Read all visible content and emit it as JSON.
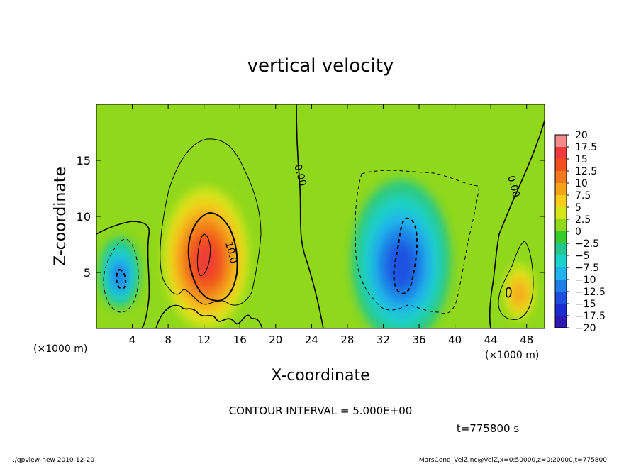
{
  "chart_data": {
    "type": "heatmap",
    "title": "vertical velocity",
    "xlabel": "X-coordinate",
    "ylabel": "Z-coordinate",
    "x_unit_left": "(×1000 m)",
    "x_unit_right": "(×1000 m)",
    "xlim": [
      0,
      50
    ],
    "ylim": [
      0,
      20
    ],
    "x_ticks": [
      4,
      8,
      12,
      16,
      20,
      24,
      28,
      32,
      36,
      40,
      44,
      48
    ],
    "y_ticks": [
      5,
      10,
      15
    ],
    "colorbar": {
      "labels": [
        "20",
        "17.5",
        "15",
        "12.5",
        "10",
        "7.5",
        "5",
        "2.5",
        "0",
        "−2.5",
        "−5",
        "−7.5",
        "−10",
        "−12.5",
        "−15",
        "−17.5",
        "−20"
      ],
      "colors": [
        "#f48a8a",
        "#ee3a3a",
        "#f2501e",
        "#f2791c",
        "#f5a41a",
        "#f7cf1a",
        "#d6e61a",
        "#8fd81c",
        "#35cc2c",
        "#20c890",
        "#1ad2cc",
        "#20b4ee",
        "#1e7ee8",
        "#1e4ee0",
        "#1a2cd2",
        "#3018b4",
        "#6a28b2"
      ]
    },
    "contour_labels": [
      {
        "text": "0.00",
        "x": 22.4,
        "y": 13.6
      },
      {
        "text": "0.00",
        "x": 46.2,
        "y": 12.6
      },
      {
        "text": "10.0",
        "x": 14.7,
        "y": 6.7
      }
    ],
    "contour_interval": "CONTOUR INTERVAL = 5.000E+00",
    "time_label": "t=775800 s",
    "features": [
      {
        "kind": "updraft",
        "x": 12.2,
        "z": 6.4,
        "peak": 17.5
      },
      {
        "kind": "weak updraft",
        "x": 47.2,
        "z": 3.4,
        "peak": 10
      },
      {
        "kind": "downdraft",
        "x": 34.0,
        "z": 6.0,
        "peak": -12.5
      },
      {
        "kind": "weak downdraft",
        "x": 2.6,
        "z": 5.0,
        "peak": -10
      }
    ]
  },
  "footer": {
    "left": "./gpview-new  2010-12-20",
    "right": "MarsCond_VelZ.nc@VelZ,x=0:50000,z=0:20000,t=775800"
  }
}
